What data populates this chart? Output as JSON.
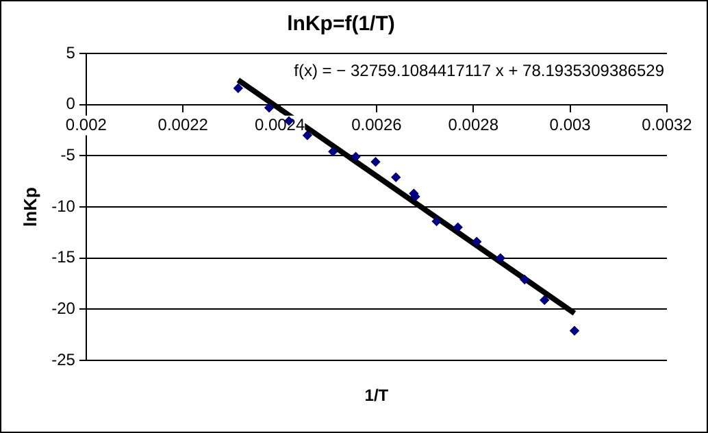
{
  "chart_data": {
    "type": "scatter",
    "title": "lnKp=f(1/T)",
    "xlabel": "1/T",
    "ylabel": "lnKp",
    "annotations": [
      "f(x) = − 32759.1084417117 x + 78.1935309386529"
    ],
    "series": [
      {
        "type": "scatter",
        "color": "#000080",
        "marker": "diamond",
        "x": [
          0.002314,
          0.002378,
          0.002419,
          0.002457,
          0.00251,
          0.002557,
          0.002598,
          0.00264,
          0.002677,
          0.00268,
          0.002724,
          0.002768,
          0.002807,
          0.002856,
          0.002906,
          0.002947,
          0.003009
        ],
        "values": [
          1.6,
          -0.3,
          -1.6,
          -3.0,
          -4.6,
          -5.1,
          -5.6,
          -7.1,
          -8.7,
          -9.0,
          -11.4,
          -12.0,
          -13.4,
          -15.0,
          -17.1,
          -19.1,
          -22.1
        ]
      },
      {
        "type": "line",
        "color": "#000000",
        "marker": "none",
        "line_style": "solid",
        "x": [
          0.002314,
          0.003009
        ],
        "values": [
          2.4,
          -20.4
        ]
      }
    ],
    "xlim": [
      0.002,
      0.0032
    ],
    "xticks": [
      0.002,
      0.0022,
      0.0024,
      0.0026,
      0.0028,
      0.003,
      0.0032
    ],
    "ylim": [
      -25,
      5
    ],
    "yticks": [
      -25,
      -20,
      -15,
      -10,
      -5,
      0,
      5
    ],
    "grid": "y",
    "legend": false
  }
}
